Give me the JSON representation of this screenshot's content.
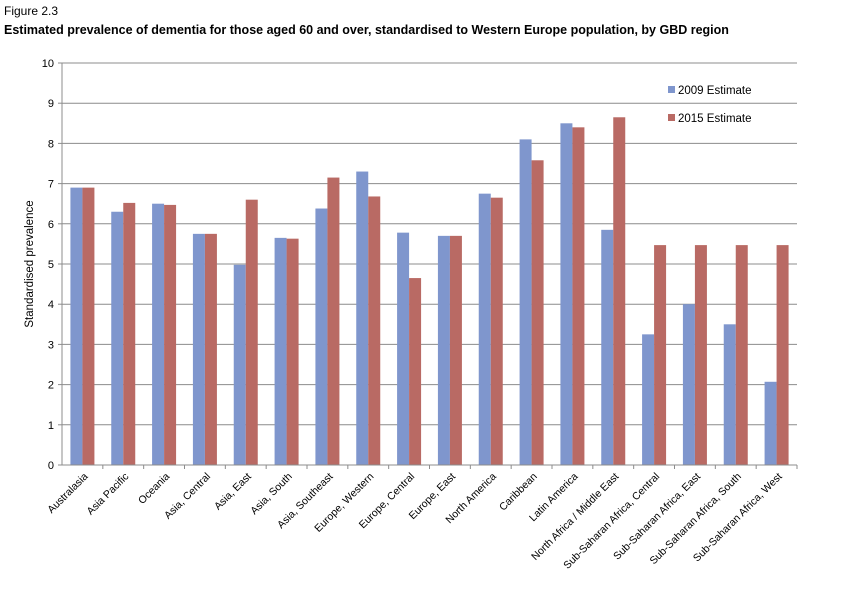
{
  "figure": {
    "label": "Figure 2.3",
    "title": "Estimated prevalence of dementia for those aged 60 and over, standardised to Western Europe population, by GBD region"
  },
  "chart_data": {
    "type": "bar",
    "title": "Estimated prevalence of dementia for those aged 60 and over, standardised to Western Europe population, by GBD region",
    "xlabel": "",
    "ylabel": "Standardised prevalence",
    "ylim": [
      0,
      10
    ],
    "yticks": [
      0,
      1,
      2,
      3,
      4,
      5,
      6,
      7,
      8,
      9,
      10
    ],
    "grid": true,
    "legend_position": "top-right",
    "categories": [
      "Australasia",
      "Asia Pacific",
      "Oceania",
      "Asia, Central",
      "Asia, East",
      "Asia, South",
      "Asia, Southeast",
      "Europe, Western",
      "Europe, Central",
      "Europe, East",
      "North America",
      "Caribbean",
      "Latin America",
      "North Africa / Middle East",
      "Sub-Saharan Africa, Central",
      "Sub-Saharan Africa, East",
      "Sub-Saharan Africa, South",
      "Sub-Saharan Africa, West"
    ],
    "series": [
      {
        "name": "2009 Estimate",
        "color": "#7f96cd",
        "values": [
          6.9,
          6.3,
          6.5,
          5.75,
          4.98,
          5.65,
          6.38,
          7.3,
          5.78,
          5.7,
          6.75,
          8.1,
          8.5,
          5.85,
          3.25,
          4.0,
          3.5,
          2.07
        ]
      },
      {
        "name": "2015 Estimate",
        "color": "#b96a64",
        "values": [
          6.9,
          6.52,
          6.47,
          5.75,
          6.6,
          5.63,
          7.15,
          6.68,
          4.65,
          5.7,
          6.65,
          7.58,
          8.4,
          8.65,
          5.47,
          5.47,
          5.47,
          5.47
        ]
      }
    ]
  }
}
